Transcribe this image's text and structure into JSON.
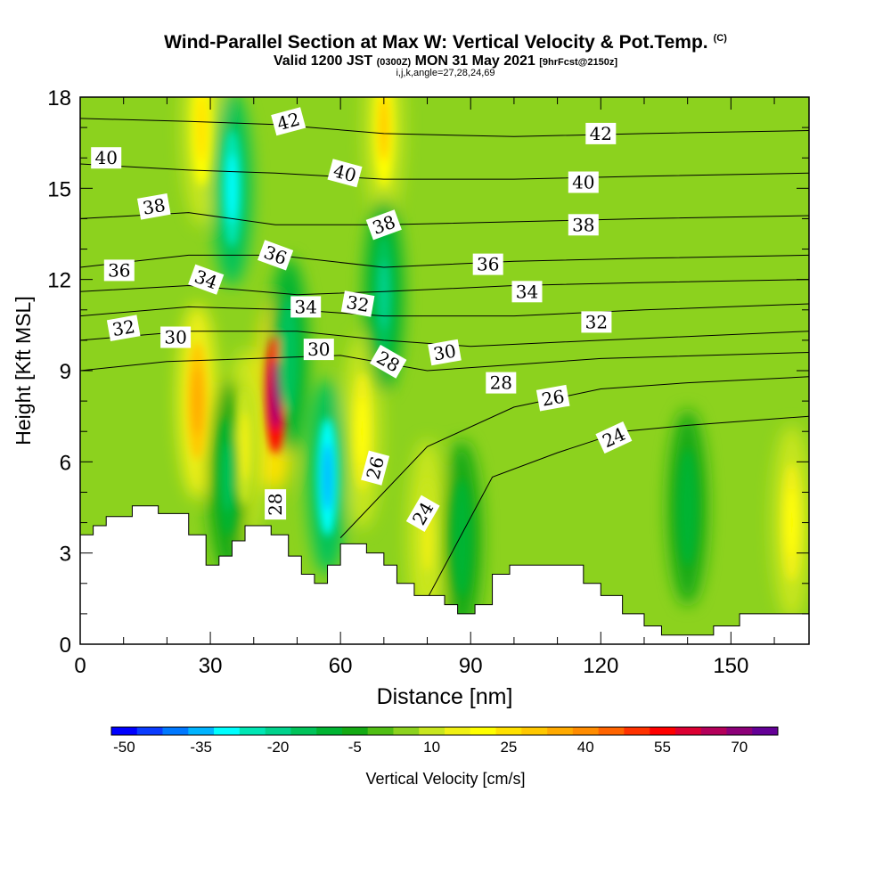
{
  "title": {
    "main": "Wind-Parallel Section at Max W: Vertical Velocity & Pot.Temp.",
    "mark": "(C)",
    "valid_prefix": "Valid 1200 JST",
    "valid_z": "(0300Z)",
    "valid_date": "MON 31 May 2021",
    "fcst": "[9hrFcst@2150z]",
    "indices": "i,j,k,angle=27,28,24,69"
  },
  "chart_data": {
    "type": "heatmap",
    "xlabel": "Distance [nm]",
    "ylabel": "Height [Kft MSL]",
    "xlim": [
      0,
      168
    ],
    "ylim": [
      0,
      18
    ],
    "xticks": [
      0,
      30,
      60,
      90,
      120,
      150
    ],
    "yticks": [
      0,
      3,
      6,
      9,
      12,
      15,
      18
    ],
    "colorbar": {
      "label": "Vertical Velocity [cm/s]",
      "tick_labels": [
        "-50",
        "-35",
        "-20",
        "-5",
        "10",
        "25",
        "40",
        "55",
        "70"
      ],
      "levels": [
        -50,
        -45,
        -40,
        -35,
        -30,
        -25,
        -20,
        -15,
        -10,
        -5,
        0,
        5,
        10,
        15,
        20,
        25,
        30,
        35,
        40,
        45,
        50,
        55,
        60,
        65,
        70,
        75
      ],
      "colors": [
        "#0000ff",
        "#0a3cff",
        "#0078ff",
        "#00b4ff",
        "#00ffff",
        "#00e6b4",
        "#00d28c",
        "#00c35a",
        "#00b432",
        "#14aa14",
        "#50be14",
        "#8cd21e",
        "#c8e61e",
        "#f0f014",
        "#ffff00",
        "#ffe100",
        "#ffc800",
        "#ffaa00",
        "#ff8c00",
        "#ff6400",
        "#ff3200",
        "#ff0000",
        "#dc0032",
        "#b4005a",
        "#8c0078",
        "#640096"
      ]
    },
    "terrain": [
      [
        0,
        3.6
      ],
      [
        3,
        3.9
      ],
      [
        6,
        4.2
      ],
      [
        12,
        4.55
      ],
      [
        18,
        4.3
      ],
      [
        25,
        3.6
      ],
      [
        29,
        2.6
      ],
      [
        32,
        2.9
      ],
      [
        35,
        3.4
      ],
      [
        38,
        3.9
      ],
      [
        44,
        3.6
      ],
      [
        48,
        2.9
      ],
      [
        51,
        2.3
      ],
      [
        54,
        2.0
      ],
      [
        57,
        2.6
      ],
      [
        60,
        3.3
      ],
      [
        66,
        3.0
      ],
      [
        70,
        2.6
      ],
      [
        73,
        2.0
      ],
      [
        77,
        1.6
      ],
      [
        84,
        1.3
      ],
      [
        87,
        1.0
      ],
      [
        91,
        1.3
      ],
      [
        95,
        2.3
      ],
      [
        99,
        2.6
      ],
      [
        112,
        2.6
      ],
      [
        116,
        2.0
      ],
      [
        120,
        1.6
      ],
      [
        125,
        1.0
      ],
      [
        130,
        0.6
      ],
      [
        134,
        0.3
      ],
      [
        143,
        0.3
      ],
      [
        146,
        0.6
      ],
      [
        152,
        1.0
      ],
      [
        165,
        1.0
      ],
      [
        168,
        1.0
      ]
    ],
    "updrafts": [
      {
        "x": 45,
        "y": 8.2,
        "w": 70
      },
      {
        "x": 27,
        "y": 8.0,
        "w": 38
      },
      {
        "x": 28,
        "y": 17.0,
        "w": 28
      },
      {
        "x": 70,
        "y": 17.0,
        "w": 30
      },
      {
        "x": 65,
        "y": 7.0,
        "w": 22
      },
      {
        "x": 38,
        "y": 6.5,
        "w": 15
      },
      {
        "x": 164,
        "y": 4.0,
        "w": 22
      },
      {
        "x": 80,
        "y": 3.5,
        "w": 15
      }
    ],
    "downdrafts": [
      {
        "x": 57,
        "y": 5.5,
        "w": -32
      },
      {
        "x": 35,
        "y": 15.0,
        "w": -30
      },
      {
        "x": 48,
        "y": 9.5,
        "w": -15
      },
      {
        "x": 70,
        "y": 11.5,
        "w": -18
      },
      {
        "x": 34,
        "y": 5.5,
        "w": -12
      },
      {
        "x": 88,
        "y": 3.5,
        "w": -8
      },
      {
        "x": 140,
        "y": 4.5,
        "w": -8
      }
    ],
    "theta_contours": [
      {
        "label": "24",
        "x": [
          80,
          95,
          110,
          125,
          140,
          168
        ],
        "y": [
          1.5,
          5.5,
          6.3,
          7.0,
          7.2,
          7.5
        ]
      },
      {
        "label": "26",
        "x": [
          60,
          80,
          100,
          120,
          140,
          168
        ],
        "y": [
          3.5,
          6.5,
          7.8,
          8.4,
          8.6,
          8.8
        ]
      },
      {
        "label": "28",
        "x": [
          0,
          20,
          40,
          60,
          80,
          100,
          120,
          168
        ],
        "y": [
          9.0,
          9.3,
          9.4,
          9.5,
          9.0,
          9.2,
          9.4,
          9.6
        ]
      },
      {
        "label": "30",
        "x": [
          0,
          25,
          50,
          70,
          90,
          120,
          168
        ],
        "y": [
          10.0,
          10.3,
          10.3,
          10.0,
          9.8,
          10.0,
          10.3
        ]
      },
      {
        "label": "32",
        "x": [
          0,
          25,
          50,
          70,
          100,
          130,
          168
        ],
        "y": [
          10.8,
          11.1,
          11.0,
          10.8,
          10.8,
          11.0,
          11.2
        ]
      },
      {
        "label": "34",
        "x": [
          0,
          25,
          50,
          70,
          100,
          130,
          168
        ],
        "y": [
          11.6,
          11.8,
          11.5,
          11.6,
          11.8,
          11.9,
          12.0
        ]
      },
      {
        "label": "36",
        "x": [
          0,
          25,
          45,
          70,
          100,
          130,
          168
        ],
        "y": [
          12.4,
          12.8,
          12.8,
          12.4,
          12.6,
          12.7,
          12.8
        ]
      },
      {
        "label": "38",
        "x": [
          0,
          25,
          45,
          70,
          100,
          130,
          168
        ],
        "y": [
          14.0,
          14.2,
          13.8,
          13.8,
          13.9,
          14.0,
          14.1
        ]
      },
      {
        "label": "40",
        "x": [
          0,
          25,
          45,
          70,
          100,
          130,
          168
        ],
        "y": [
          15.8,
          15.6,
          15.5,
          15.3,
          15.3,
          15.4,
          15.5
        ]
      },
      {
        "label": "42",
        "x": [
          0,
          25,
          45,
          70,
          100,
          130,
          168
        ],
        "y": [
          17.3,
          17.2,
          17.1,
          16.8,
          16.7,
          16.8,
          16.9
        ]
      }
    ],
    "contour_labels": [
      {
        "text": "42",
        "x": 48,
        "y": 17.2,
        "angle": -15
      },
      {
        "text": "42",
        "x": 120,
        "y": 16.8,
        "angle": 0
      },
      {
        "text": "40",
        "x": 6,
        "y": 16.0,
        "angle": 0
      },
      {
        "text": "40",
        "x": 61,
        "y": 15.5,
        "angle": 15
      },
      {
        "text": "40",
        "x": 116,
        "y": 15.2,
        "angle": 0
      },
      {
        "text": "38",
        "x": 17,
        "y": 14.4,
        "angle": -10
      },
      {
        "text": "38",
        "x": 70,
        "y": 13.8,
        "angle": -20
      },
      {
        "text": "38",
        "x": 116,
        "y": 13.8,
        "angle": 0
      },
      {
        "text": "36",
        "x": 9,
        "y": 12.3,
        "angle": 0
      },
      {
        "text": "36",
        "x": 45,
        "y": 12.8,
        "angle": 20
      },
      {
        "text": "36",
        "x": 94,
        "y": 12.5,
        "angle": 0
      },
      {
        "text": "34",
        "x": 29,
        "y": 12.0,
        "angle": 20
      },
      {
        "text": "34",
        "x": 103,
        "y": 11.6,
        "angle": 0
      },
      {
        "text": "34",
        "x": 52,
        "y": 11.1,
        "angle": 0
      },
      {
        "text": "32",
        "x": 64,
        "y": 11.2,
        "angle": 10
      },
      {
        "text": "32",
        "x": 10,
        "y": 10.4,
        "angle": -10
      },
      {
        "text": "32",
        "x": 119,
        "y": 10.6,
        "angle": 0
      },
      {
        "text": "30",
        "x": 22,
        "y": 10.1,
        "angle": 0
      },
      {
        "text": "30",
        "x": 55,
        "y": 9.7,
        "angle": 0
      },
      {
        "text": "30",
        "x": 84,
        "y": 9.6,
        "angle": -10
      },
      {
        "text": "28",
        "x": 71,
        "y": 9.3,
        "angle": 30
      },
      {
        "text": "28",
        "x": 97,
        "y": 8.6,
        "angle": 0
      },
      {
        "text": "26",
        "x": 109,
        "y": 8.1,
        "angle": -10
      },
      {
        "text": "24",
        "x": 123,
        "y": 6.8,
        "angle": -25
      },
      {
        "text": "28",
        "x": 45,
        "y": 4.6,
        "angle": -90
      },
      {
        "text": "26",
        "x": 68,
        "y": 5.8,
        "angle": -75
      },
      {
        "text": "24",
        "x": 79,
        "y": 4.3,
        "angle": -60
      }
    ]
  }
}
